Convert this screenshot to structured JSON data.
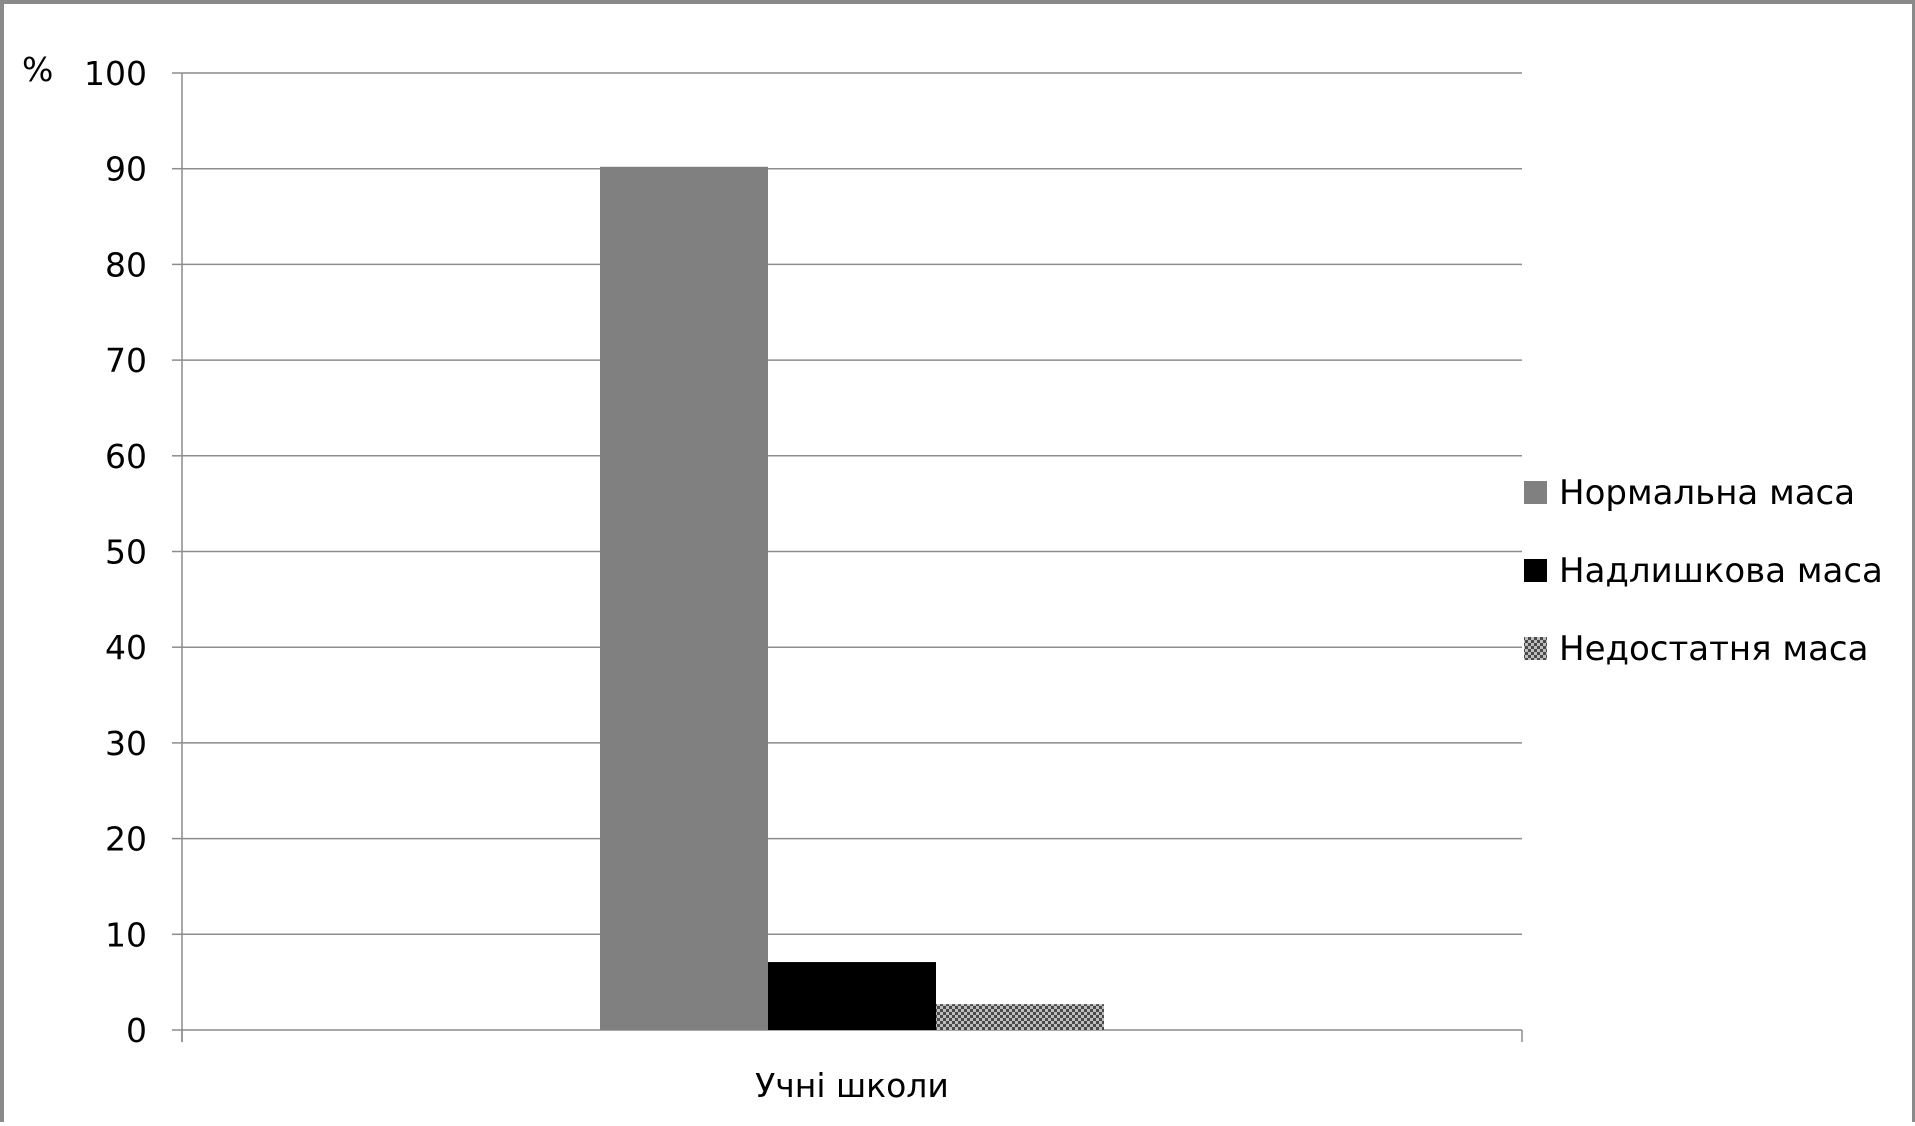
{
  "chart_data": {
    "type": "bar",
    "title": "",
    "ylabel": "%",
    "xlabel": "",
    "ylim": [
      0,
      100
    ],
    "yticks": [
      0,
      10,
      20,
      30,
      40,
      50,
      60,
      70,
      80,
      90,
      100
    ],
    "grid": true,
    "legend_position": "right",
    "categories": [
      "Учні школи"
    ],
    "series": [
      {
        "name": "Нормальна маса",
        "values": [
          90.2
        ],
        "color": "#808080",
        "pattern": "solid"
      },
      {
        "name": "Надлишкова маса",
        "values": [
          7.1
        ],
        "color": "#000000",
        "pattern": "solid"
      },
      {
        "name": "Недостатня маса",
        "values": [
          2.7
        ],
        "color": "#555555",
        "pattern": "checker"
      }
    ]
  }
}
